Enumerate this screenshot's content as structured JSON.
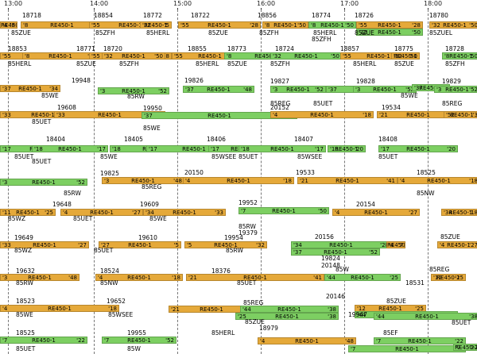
{
  "hours": [
    "13:00",
    "14:00",
    "15:00",
    "16:00",
    "17:00",
    "18:00"
  ],
  "labels": [
    "18718",
    "18854",
    "18772",
    "18722",
    "18856",
    "18774",
    "18726",
    "18780",
    "85ZUE",
    "85ZFH",
    "85HERL",
    "85ZUE",
    "85ZFH",
    "85HERL",
    "85ZUE",
    "85ZUEL",
    "85ZFH",
    "18853",
    "18771",
    "18720",
    "18855",
    "18773",
    "18724",
    "18857",
    "18775",
    "18728",
    "85HERL",
    "85ZUE",
    "85ZFH",
    "85HERL",
    "85ZUE",
    "85ZFH",
    "85HERL",
    "85ZUE",
    "85ZFH",
    "19948",
    "19826",
    "19827",
    "19828",
    "19829",
    "85WE",
    "85RW",
    "85REG",
    "85UET",
    "85WE",
    "85REG",
    "19608",
    "19950",
    "20152",
    "19534",
    "85UET",
    "85WE",
    "18404",
    "18405",
    "18406",
    "18407",
    "18408",
    "85UET",
    "85WE",
    "85UET",
    "85WSEE",
    "85UET",
    "85WSEE",
    "85UET",
    "19825",
    "20150",
    "19533",
    "18525",
    "85RW",
    "85REG",
    "85NW",
    "19648",
    "19609",
    "19952",
    "20154",
    "85WZ",
    "85UET",
    "85WE",
    "85RW",
    "19379",
    "19649",
    "19610",
    "19954",
    "20156",
    "85ZUE",
    "85WZ",
    "85UET",
    "85RW",
    "19824",
    "20148",
    "19632",
    "18524",
    "18376",
    "85W",
    "85REG",
    "85RW",
    "85NW",
    "85UET",
    "20146",
    "18531",
    "18523",
    "19652",
    "85REG",
    "85ZUE",
    "85WSEE",
    "85WE",
    "85ZUE",
    "85UET",
    "19947",
    "18979",
    "18525",
    "19955",
    "85HERL",
    "85EF",
    "85UET",
    "85W"
  ],
  "bars": [
    [
      "'4",
      "'8",
      "RE450-1"
    ],
    [
      "'8",
      "'9",
      "RE450-1"
    ],
    [
      "'55",
      "'28",
      "RE450-1"
    ],
    [
      "'32",
      "'5",
      "RE450-1"
    ],
    [
      "'55",
      "'28",
      "RE450-1"
    ],
    [
      "'8",
      "'50",
      "RE450-1"
    ],
    [
      "'8",
      "'50",
      "RE450-1"
    ],
    [
      "'55",
      "'28",
      "RE450-1"
    ],
    [
      "'32",
      "'50",
      "RE450-1"
    ],
    [
      "'32",
      "'50",
      "RE450-1"
    ],
    [
      "'55",
      "'28",
      "RE450-1"
    ],
    [
      "'8",
      "'50",
      "RE450-1"
    ],
    [
      "'55",
      "'28",
      "RE450-1"
    ],
    [
      "'32",
      "'50",
      "RE450-1"
    ],
    [
      "'55",
      "'28",
      "RE450-1"
    ],
    [
      "'8",
      "'50",
      "RE450-1"
    ],
    [
      "'32",
      "'50",
      "RE450-1"
    ],
    [
      "'55",
      "'28",
      "RE450-1"
    ],
    [
      "'32",
      "'50",
      "RE450-1"
    ],
    [
      "'8",
      "'50",
      "RE450-1"
    ],
    [
      "'37",
      "'34",
      "RE450-1"
    ],
    [
      "'3",
      "'52",
      "RE450-1"
    ],
    [
      "'37",
      "'48",
      "RE450-1"
    ],
    [
      "'3",
      "'52",
      "RE450-1"
    ],
    [
      "'37",
      "'48",
      "RE450-1"
    ],
    [
      "'3",
      "'52",
      "RE450-1"
    ],
    [
      "'37",
      "'48",
      "RE450-1"
    ],
    [
      "'3",
      "'52",
      "RE450-1"
    ],
    [
      "'33",
      "'27",
      "RE450-1"
    ],
    [
      "'33",
      "'18",
      "RE450-1"
    ],
    [
      "'37",
      "'52",
      "RE450-1"
    ],
    [
      "'4",
      "'18",
      "RE450-1"
    ],
    [
      "'21",
      "'48",
      "RE450-1"
    ],
    [
      "'52",
      "'3",
      "RE450-1"
    ],
    [
      "'17",
      "'20",
      "RE450-1"
    ],
    [
      "'18",
      "'17",
      "RE450-1"
    ],
    [
      "'18",
      "'20",
      "RE450-1"
    ],
    [
      "'17",
      "'20",
      "RE450-1"
    ],
    [
      "'17",
      "'20",
      "RE450-1"
    ],
    [
      "'18",
      "'17",
      "RE450-1"
    ],
    [
      "'18",
      "'20",
      "RE450-1"
    ],
    [
      "'17",
      "'20",
      "RE450-1"
    ],
    [
      "'3",
      "'52",
      "RE450-1"
    ],
    [
      "'3",
      "'48",
      "RE450-1"
    ],
    [
      "'4",
      "'18",
      "RE450-1"
    ],
    [
      "'21",
      "'41",
      "RE450-1"
    ],
    [
      "'4",
      "'18",
      "RE450-1"
    ],
    [
      "'11",
      "'25",
      "RE450-1"
    ],
    [
      "'4",
      "'27",
      "RE450-1"
    ],
    [
      "'34",
      "'33",
      "RE450-1"
    ],
    [
      "'7",
      "'50",
      "RE450-1"
    ],
    [
      "'4",
      "'27",
      "RE450-1"
    ],
    [
      "'34",
      "'18",
      "RE450-1"
    ],
    [
      "'33",
      "'27",
      "RE450-1"
    ],
    [
      "'27",
      "'5",
      "RE450-1"
    ],
    [
      "'5",
      "'32",
      "RE450-1"
    ],
    [
      "'34",
      "'28",
      "RE450-1"
    ],
    [
      "'37",
      "'52",
      "RE450-1"
    ],
    [
      "'4",
      "'7",
      "RE450-1"
    ],
    [
      "'4",
      "'27",
      "RE450-1"
    ],
    [
      "'3",
      "'48",
      "RE450-1"
    ],
    [
      "'4",
      "'18",
      "RE450-1"
    ],
    [
      "'21",
      "'41",
      "RE450-1"
    ],
    [
      "'44",
      "'25",
      "RE450-1"
    ],
    [
      "'12",
      "'25",
      "RE450-1"
    ],
    [
      "'4",
      "'18",
      "RE450-1"
    ],
    [
      "'21",
      "'41",
      "RE450-1"
    ],
    [
      "'44",
      "'38",
      "RE450-1"
    ],
    [
      "'12",
      "'25",
      "RE450-1"
    ],
    [
      "'44",
      "'38",
      "RE450-1"
    ],
    [
      "'25",
      "'38",
      "RE450-1"
    ],
    [
      "'44",
      "'38",
      "RE450-1"
    ],
    [
      "'7",
      "'22",
      "RE450-1"
    ],
    [
      "'7",
      "'52",
      "RE450-1"
    ],
    [
      "'4",
      "'48",
      "RE450-1"
    ],
    [
      "'7",
      "'22",
      "RE450-1"
    ],
    [
      "'7",
      "'22",
      "RE450-1"
    ],
    [
      "'7",
      "'22",
      "RE450-1"
    ]
  ]
}
